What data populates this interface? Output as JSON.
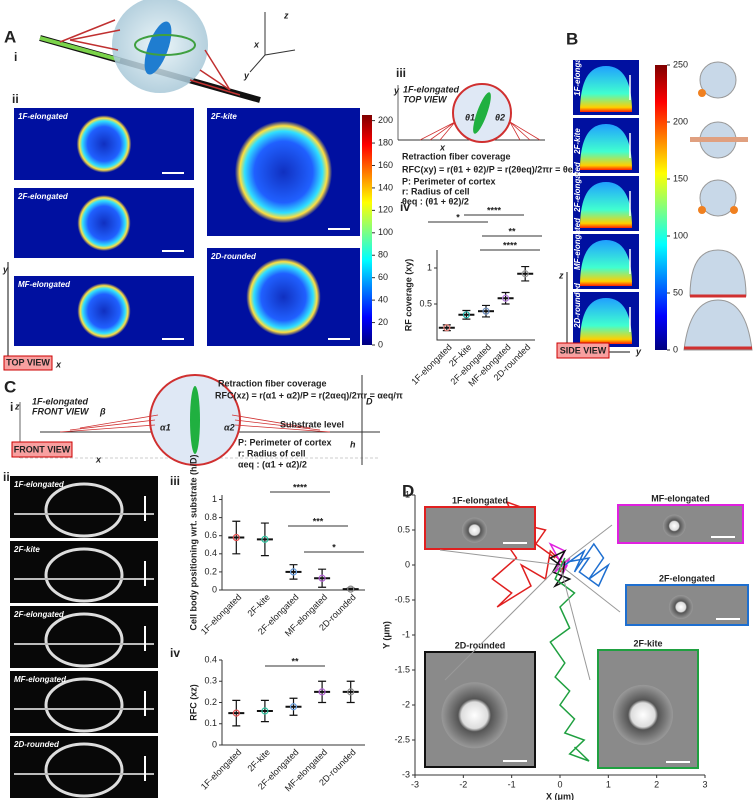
{
  "panel_labels": {
    "A": "A",
    "B": "B",
    "C": "C",
    "D": "D",
    "a_i": "i",
    "a_ii": "ii",
    "a_iii": "iii",
    "a_iv": "iv",
    "c_i": "i",
    "c_ii": "ii",
    "c_iii": "iii",
    "c_iv": "iv"
  },
  "panel_a": {
    "axes": [
      "x",
      "z",
      "y"
    ],
    "images": [
      "1F-elongated",
      "2F-elongated",
      "MF-elongated",
      "2F-kite",
      "2D-rounded"
    ],
    "view": "TOP VIEW",
    "view_axes": [
      "y",
      "x"
    ],
    "colorbar": {
      "range": [
        0,
        205
      ],
      "ticks": [
        0,
        20,
        40,
        60,
        80,
        100,
        120,
        140,
        160,
        180,
        200
      ]
    },
    "diagram": {
      "title": [
        "1F-elongated",
        "TOP VIEW"
      ],
      "axes": [
        "y",
        "x"
      ],
      "angles": [
        "θ1",
        "θ2"
      ],
      "heading": "Retraction fiber coverage",
      "formula": "RFC(xy) = r(θ1 + θ2)/P = r(2θeq)/2πr = θeq/π",
      "notes": [
        "P: Perimeter of cortex",
        "r: Radius of cell",
        "θeq : (θ1 + θ2)/2"
      ]
    }
  },
  "panel_b": {
    "images": [
      "1F-elongated",
      "2F-kite",
      "2F-elongated",
      "MF-elongated",
      "2D-rounded"
    ],
    "view": "SIDE VIEW",
    "view_axes": [
      "z",
      "y"
    ],
    "colorbar": {
      "range": [
        0,
        250
      ],
      "ticks": [
        0,
        50,
        100,
        150,
        200,
        250
      ]
    }
  },
  "panel_c": {
    "diagram": {
      "title": "1F-elongated",
      "subtitle": "FRONT VIEW",
      "axes": [
        "z",
        "x"
      ],
      "view": "FRONT VIEW",
      "heading": "Retraction fiber coverage",
      "formula": "RFC(xz) = r(α1 + α2)/P = r(2αeq)/2πr = αeq/π",
      "substrate": "Substrate level",
      "angles": [
        "β",
        "α1",
        "α2"
      ],
      "dims": [
        "D",
        "h"
      ],
      "notes": [
        "P: Perimeter of cortex",
        "r: Radius of cell",
        "αeq : (α1 + α2)/2"
      ]
    },
    "images": [
      "1F-elongated",
      "2F-kite",
      "2F-elongated",
      "MF-elongated",
      "2D-rounded"
    ]
  },
  "chart_data": [
    {
      "type": "dot",
      "ylabel": "RF coverage (xy)",
      "categories": [
        "1F-elongated",
        "2F-kite",
        "2F-elongated",
        "MF-elongated",
        "2D-rounded"
      ],
      "values": [
        0.17,
        0.35,
        0.4,
        0.58,
        0.92
      ],
      "errors": [
        0.04,
        0.06,
        0.08,
        0.08,
        0.1
      ],
      "colors": [
        "#e8837b",
        "#20b2aa",
        "#6c8ebf",
        "#b57edc",
        "#999999"
      ],
      "ylim": [
        0,
        1.25
      ],
      "yticks": [
        0.5,
        1
      ],
      "annotations": [
        "*",
        "****",
        "**",
        "****"
      ]
    },
    {
      "type": "dot",
      "ylabel": "Cell body positioning wrt. substrate (h/D)",
      "categories": [
        "1F-elongated",
        "2F-kite",
        "2F-elongated",
        "MF-elongated",
        "2D-rounded"
      ],
      "values": [
        0.58,
        0.56,
        0.2,
        0.13,
        0.01
      ],
      "errors": [
        0.18,
        0.18,
        0.08,
        0.1,
        0.01
      ],
      "colors": [
        "#e05050",
        "#2ec4a0",
        "#6aa0e0",
        "#b060d0",
        "#888888"
      ],
      "ylim": [
        0,
        1.05
      ],
      "yticks": [
        0,
        0.2,
        0.4,
        0.6,
        0.8,
        1
      ],
      "annotations": [
        "****",
        "***",
        "*"
      ]
    },
    {
      "type": "dot",
      "ylabel": "RFC (xz)",
      "categories": [
        "1F-elongated",
        "2F-kite",
        "2F-elongated",
        "MF-elongated",
        "2D-rounded"
      ],
      "values": [
        0.15,
        0.16,
        0.18,
        0.25,
        0.25
      ],
      "errors": [
        0.06,
        0.05,
        0.04,
        0.05,
        0.05
      ],
      "colors": [
        "#e05050",
        "#2ec4a0",
        "#6aa0e0",
        "#b060d0",
        "#888888"
      ],
      "ylim": [
        0,
        0.4
      ],
      "yticks": [
        0,
        0.1,
        0.2,
        0.3,
        0.4
      ],
      "annotations": [
        "**"
      ]
    },
    {
      "type": "line",
      "xlabel": "X (μm)",
      "ylabel": "Y (μm)",
      "xlim": [
        -3,
        3
      ],
      "ylim": [
        -3,
        1
      ],
      "xticks": [
        -3,
        -2,
        -1,
        0,
        1,
        2,
        3
      ],
      "yticks": [
        1,
        0.5,
        0,
        -0.5,
        -1,
        -1.5,
        -2,
        -2.5,
        -3
      ],
      "series": [
        {
          "name": "1F-elongated",
          "color": "#e02020",
          "x": [
            -0.1,
            -0.5,
            -0.3,
            -0.9,
            -1.1,
            -0.7,
            -1.2,
            -0.9,
            -1.4,
            -1.0,
            -1.3,
            -0.6,
            -0.8,
            -0.3,
            -0.2,
            0.1,
            0.0
          ],
          "y": [
            0.1,
            0.3,
            0.5,
            0.6,
            0.9,
            0.8,
            0.4,
            0.1,
            -0.2,
            -0.4,
            -0.6,
            -0.3,
            0.0,
            -0.2,
            0.2,
            0.0,
            -0.1
          ]
        },
        {
          "name": "MF-elongated",
          "color": "#e020e0",
          "x": [
            0,
            -0.2,
            0.1,
            -0.1,
            0.2,
            0.0,
            0.15
          ],
          "y": [
            0.05,
            0.3,
            0.2,
            -0.1,
            0.1,
            -0.2,
            0.0
          ]
        },
        {
          "name": "2F-elongated",
          "color": "#1e6fd0",
          "x": [
            0.1,
            0.5,
            0.3,
            0.7,
            0.9,
            0.6,
            1.0,
            0.8,
            0.4,
            0.6,
            0.2
          ],
          "y": [
            0,
            0.2,
            -0.1,
            0.3,
            0.1,
            -0.2,
            0,
            -0.3,
            -0.1,
            0.1,
            0.05
          ]
        },
        {
          "name": "2D-rounded",
          "color": "#111111",
          "x": [
            0,
            -0.2,
            0.1,
            -0.15,
            0.2,
            -0.1,
            0.05,
            0.1
          ],
          "y": [
            0,
            0.1,
            0.2,
            -0.1,
            -0.2,
            -0.3,
            -0.15,
            0.05
          ]
        },
        {
          "name": "2F-kite",
          "color": "#1fa040",
          "x": [
            0.1,
            -0.1,
            0.3,
            0,
            0.2,
            -0.2,
            0.1,
            -0.1,
            0.2,
            0.0,
            0.3,
            0.1,
            0.5,
            0.2,
            0.6,
            0.3
          ],
          "y": [
            0.1,
            -0.2,
            -0.4,
            -0.6,
            -0.9,
            -1.1,
            -1.4,
            -1.6,
            -1.8,
            -2.0,
            -2.2,
            -2.4,
            -2.5,
            -2.7,
            -2.8,
            -2.6
          ]
        }
      ]
    }
  ]
}
